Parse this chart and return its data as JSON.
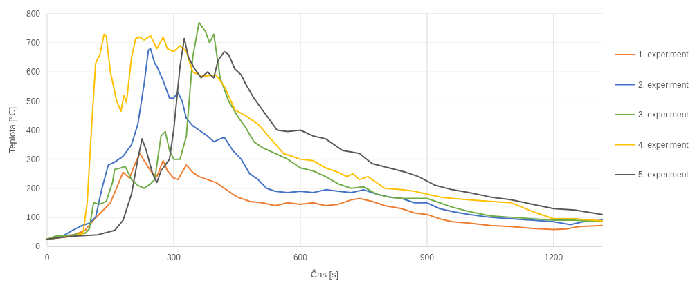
{
  "chart_data": {
    "type": "line",
    "xlabel": "Čas [s]",
    "ylabel": "Teplota  [°C]",
    "xlim": [
      0,
      1315
    ],
    "xticks": [
      0,
      300,
      600,
      900,
      1200
    ],
    "ylim": [
      0,
      800
    ],
    "yticks": [
      0,
      100,
      200,
      300,
      400,
      500,
      600,
      700,
      800
    ],
    "grid": true,
    "legend": "right",
    "line_style": "solid",
    "marker": "none",
    "series": [
      {
        "name": "1. experiment",
        "color": "#ed7d31",
        "x": [
          0,
          30,
          60,
          90,
          110,
          130,
          150,
          170,
          180,
          195,
          210,
          220,
          230,
          245,
          260,
          275,
          285,
          300,
          310,
          330,
          345,
          360,
          380,
          400,
          420,
          450,
          480,
          510,
          540,
          570,
          600,
          630,
          660,
          690,
          720,
          740,
          770,
          800,
          840,
          870,
          900,
          930,
          960,
          1000,
          1050,
          1100,
          1150,
          1200,
          1230,
          1260,
          1290,
          1315
        ],
        "values": [
          25,
          30,
          38,
          55,
          90,
          120,
          150,
          220,
          255,
          235,
          290,
          320,
          295,
          260,
          240,
          295,
          260,
          235,
          230,
          280,
          255,
          240,
          230,
          220,
          200,
          170,
          155,
          150,
          140,
          150,
          145,
          150,
          140,
          145,
          160,
          165,
          155,
          140,
          130,
          115,
          110,
          95,
          85,
          80,
          72,
          68,
          62,
          58,
          60,
          68,
          70,
          72
        ]
      },
      {
        "name": "2. experiment",
        "color": "#4472c4",
        "x": [
          0,
          30,
          60,
          80,
          100,
          115,
          130,
          145,
          160,
          180,
          200,
          215,
          230,
          240,
          245,
          255,
          260,
          275,
          290,
          300,
          310,
          320,
          330,
          345,
          360,
          380,
          395,
          410,
          420,
          440,
          460,
          480,
          500,
          520,
          540,
          570,
          600,
          630,
          660,
          690,
          720,
          750,
          780,
          810,
          840,
          870,
          900,
          930,
          960,
          1000,
          1050,
          1100,
          1150,
          1200,
          1240,
          1270,
          1315
        ],
        "values": [
          25,
          30,
          55,
          70,
          80,
          100,
          200,
          280,
          290,
          310,
          350,
          420,
          560,
          675,
          680,
          630,
          620,
          570,
          510,
          510,
          530,
          500,
          440,
          415,
          400,
          380,
          360,
          370,
          375,
          330,
          300,
          250,
          230,
          200,
          190,
          185,
          190,
          185,
          195,
          190,
          185,
          195,
          180,
          170,
          165,
          150,
          150,
          130,
          120,
          110,
          100,
          95,
          90,
          85,
          75,
          85,
          90
        ]
      },
      {
        "name": "3. experiment",
        "color": "#70ad47",
        "x": [
          0,
          20,
          60,
          90,
          100,
          110,
          125,
          140,
          155,
          160,
          175,
          185,
          200,
          215,
          230,
          245,
          255,
          270,
          280,
          290,
          300,
          315,
          330,
          345,
          360,
          375,
          385,
          395,
          410,
          430,
          455,
          470,
          490,
          510,
          540,
          570,
          600,
          630,
          660,
          690,
          720,
          750,
          780,
          810,
          840,
          870,
          900,
          930,
          960,
          1000,
          1050,
          1100,
          1150,
          1200,
          1250,
          1315
        ],
        "values": [
          25,
          35,
          40,
          45,
          60,
          150,
          145,
          155,
          220,
          265,
          270,
          275,
          230,
          210,
          200,
          215,
          230,
          380,
          395,
          330,
          300,
          300,
          380,
          650,
          770,
          740,
          700,
          730,
          580,
          500,
          440,
          410,
          360,
          340,
          320,
          300,
          270,
          260,
          240,
          215,
          200,
          205,
          180,
          170,
          165,
          165,
          165,
          150,
          135,
          120,
          105,
          100,
          95,
          90,
          90,
          85
        ]
      },
      {
        "name": "4. experiment",
        "color": "#ffc000",
        "x": [
          0,
          60,
          85,
          95,
          105,
          115,
          125,
          135,
          140,
          150,
          165,
          175,
          182,
          188,
          200,
          210,
          220,
          230,
          245,
          260,
          275,
          285,
          300,
          315,
          330,
          345,
          370,
          400,
          420,
          445,
          470,
          500,
          530,
          560,
          600,
          630,
          660,
          690,
          710,
          725,
          740,
          760,
          800,
          840,
          870,
          900,
          930,
          960,
          1000,
          1050,
          1100,
          1150,
          1200,
          1250,
          1315
        ],
        "values": [
          25,
          35,
          45,
          150,
          400,
          630,
          660,
          730,
          725,
          600,
          500,
          465,
          520,
          495,
          650,
          715,
          720,
          710,
          725,
          680,
          720,
          680,
          670,
          690,
          670,
          600,
          585,
          590,
          550,
          470,
          450,
          420,
          370,
          320,
          300,
          295,
          270,
          255,
          240,
          250,
          230,
          240,
          200,
          195,
          190,
          180,
          170,
          165,
          160,
          155,
          150,
          120,
          95,
          95,
          88
        ]
      },
      {
        "name": "5. experiment",
        "color": "#595959",
        "x": [
          0,
          60,
          120,
          160,
          180,
          200,
          215,
          225,
          235,
          250,
          260,
          270,
          280,
          290,
          300,
          315,
          325,
          335,
          350,
          365,
          380,
          395,
          405,
          420,
          430,
          445,
          460,
          470,
          490,
          510,
          530,
          545,
          570,
          600,
          630,
          660,
          700,
          740,
          770,
          810,
          850,
          880,
          920,
          960,
          1000,
          1050,
          1100,
          1150,
          1200,
          1250,
          1315
        ],
        "values": [
          25,
          35,
          40,
          55,
          90,
          180,
          300,
          370,
          330,
          250,
          220,
          260,
          280,
          300,
          400,
          620,
          715,
          650,
          610,
          580,
          600,
          580,
          640,
          670,
          660,
          610,
          590,
          560,
          510,
          470,
          430,
          400,
          395,
          400,
          380,
          370,
          330,
          320,
          285,
          270,
          255,
          240,
          210,
          195,
          185,
          170,
          160,
          145,
          130,
          125,
          110
        ]
      }
    ]
  }
}
